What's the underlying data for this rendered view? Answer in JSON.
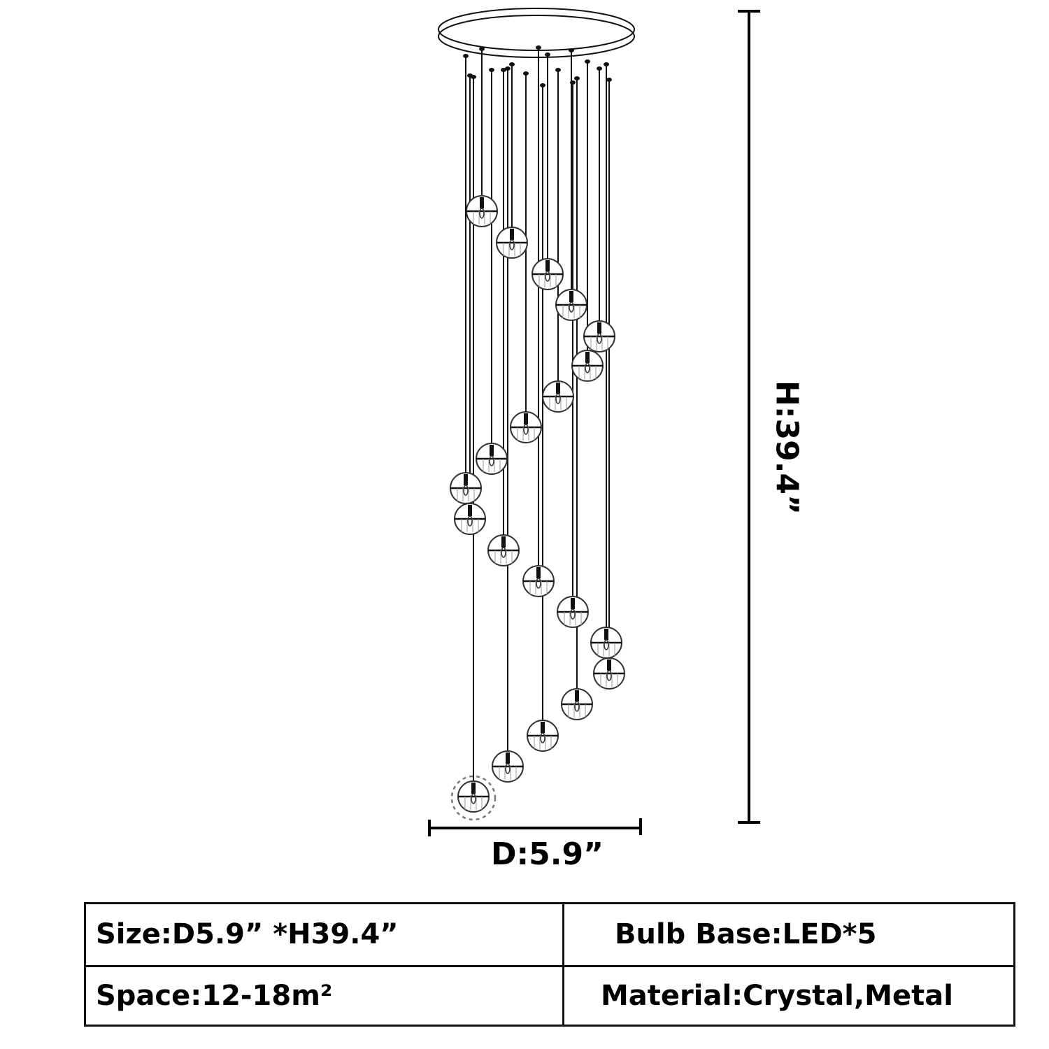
{
  "dimensions": {
    "diameter_label": "D:5.9”",
    "height_label": "H:39.4”"
  },
  "specs": {
    "size": "Size:D5.9”  *H39.4”",
    "bulb_base": "Bulb Base:LED*5",
    "space": "Space:12-18m²",
    "material": "Material:Crystal,Metal"
  },
  "colors": {
    "line": "#111111",
    "accent_dashed": "#777777"
  }
}
